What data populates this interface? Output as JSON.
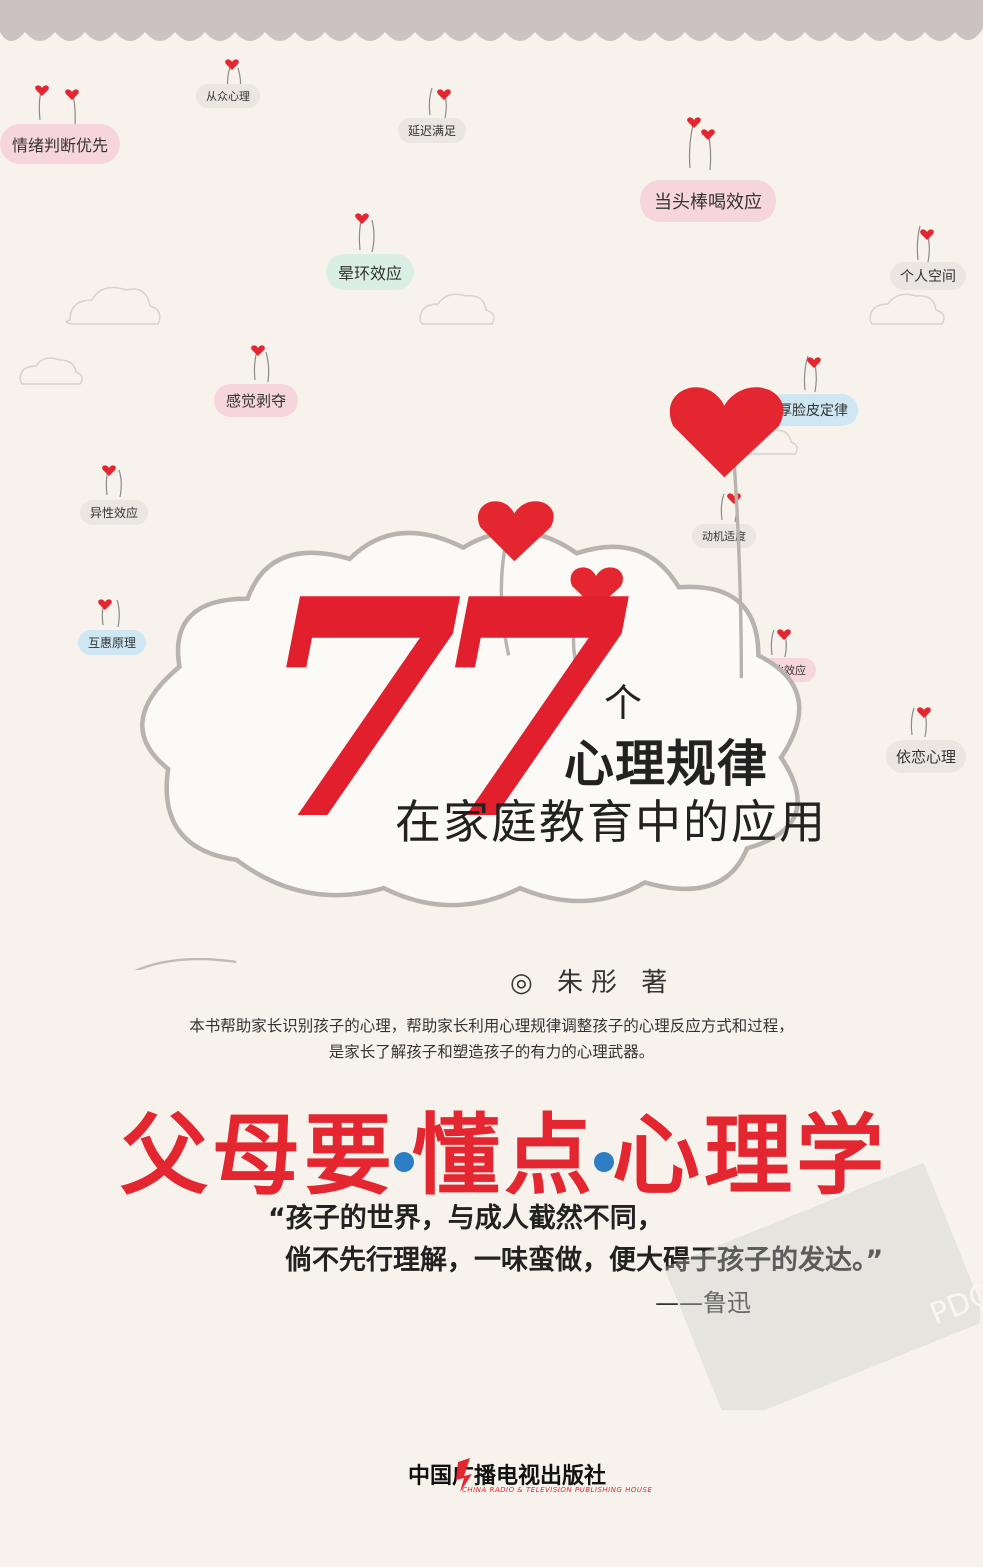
{
  "tags": [
    {
      "id": "congzhong",
      "text": "从众心理"
    },
    {
      "id": "qingxu",
      "text": "情绪判断优先"
    },
    {
      "id": "yanchi",
      "text": "延迟满足"
    },
    {
      "id": "dangtou",
      "text": "当头棒喝效应"
    },
    {
      "id": "yunhuan",
      "text": "晕环效应"
    },
    {
      "id": "geren",
      "text": "个人空间"
    },
    {
      "id": "ganjue",
      "text": "感觉剥夺"
    },
    {
      "id": "houlian",
      "text": "厚脸皮定律"
    },
    {
      "id": "yixing",
      "text": "异性效应"
    },
    {
      "id": "dongji",
      "text": "动机适度"
    },
    {
      "id": "huhui",
      "text": "互惠原理"
    },
    {
      "id": "pibi",
      "text": "批比效应"
    },
    {
      "id": "yilian",
      "text": "依恋心理"
    }
  ],
  "hero": {
    "number": "77",
    "counter": "个",
    "subtitle_1": "心理规律",
    "subtitle_2": "在家庭教育中的应用"
  },
  "author": "◎ 朱彤 著",
  "description": [
    "本书帮助家长识别孩子的心理，帮助家长利用心理规律调整孩子的心理反应方式和过程，",
    "是家长了解孩子和塑造孩子的有力的心理武器。"
  ],
  "main_title": {
    "part1": "父母要",
    "part2": "懂点",
    "part3": "心理学"
  },
  "quote": {
    "line1": "“孩子的世界，与成人截然不同，",
    "line2": "倘不先行理解，一味蛮做，便大碍于孩子的发达。”",
    "attribution": "——鲁迅"
  },
  "publisher": {
    "name_cn": "中国广播电视出版社",
    "name_en": "CHINA RADIO & TELEVISION PUBLISHING HOUSE"
  },
  "stamp_text": "PDG",
  "colors": {
    "accent_red": "#e3262f",
    "dot_blue": "#2d7ec5",
    "background": "#f7f3ec"
  }
}
